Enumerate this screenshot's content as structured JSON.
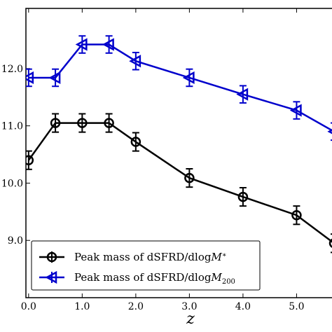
{
  "chart_data": {
    "type": "line",
    "xlabel": "z",
    "ylabel": "",
    "xlim": [
      -0.05,
      5.7
    ],
    "ylim": [
      8.0,
      13.05
    ],
    "xticks": [
      0.0,
      1.0,
      2.0,
      3.0,
      4.0,
      5.0
    ],
    "xtick_labels": [
      "0.0",
      "1.0",
      "2.0",
      "3.0",
      "4.0",
      "5.0"
    ],
    "yticks": [
      9.0,
      10.0,
      11.0,
      12.0
    ],
    "ytick_labels": [
      "9.0",
      "10.0",
      "11.0",
      "12.0"
    ],
    "grid": false,
    "legend_position": "bottom-left",
    "series": [
      {
        "name_prefix": "Peak mass of dSFRD/dlog",
        "name_var": "M",
        "name_sub": "*",
        "color": "#000000",
        "marker": "circle",
        "x": [
          0.0,
          0.5,
          1.0,
          1.5,
          2.0,
          3.0,
          4.0,
          5.0,
          5.7
        ],
        "y": [
          10.4,
          11.05,
          11.05,
          11.05,
          10.72,
          10.09,
          9.76,
          9.44,
          8.95
        ],
        "err": [
          0.16,
          0.16,
          0.16,
          0.16,
          0.16,
          0.16,
          0.16,
          0.16,
          0.16
        ]
      },
      {
        "name_prefix": "Peak mass of dSFRD/dlog",
        "name_var": "M",
        "name_sub": "200",
        "color": "#0000cc",
        "marker": "left-triangle",
        "x": [
          0.0,
          0.5,
          1.0,
          1.5,
          2.0,
          3.0,
          4.0,
          5.0,
          5.7
        ],
        "y": [
          11.84,
          11.84,
          12.42,
          12.42,
          12.13,
          11.84,
          11.55,
          11.27,
          10.9
        ],
        "err": [
          0.15,
          0.15,
          0.15,
          0.15,
          0.15,
          0.15,
          0.15,
          0.15,
          0.15
        ]
      }
    ]
  }
}
